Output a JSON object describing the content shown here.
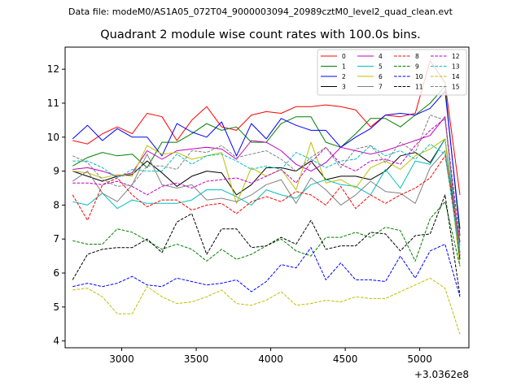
{
  "figure": {
    "suptitle": "Data file: modeM0/AS1A05_072T04_9000003094_20989cztM0_level2_quad_clean.evt"
  },
  "chart_data": {
    "type": "line",
    "title": "Quadrant 2 module wise count rates with 100.0s bins.",
    "xlabel": "",
    "ylabel": "",
    "x_offset_label": "+3.0362e8",
    "xlim": [
      2620,
      5330
    ],
    "ylim": [
      3.8,
      12.65
    ],
    "xticks": [
      3000,
      3500,
      4000,
      4500,
      5000
    ],
    "yticks": [
      4,
      5,
      6,
      7,
      8,
      9,
      10,
      11,
      12
    ],
    "legend_position": "top-right",
    "x": [
      2670,
      2770,
      2870,
      2970,
      3070,
      3170,
      3270,
      3370,
      3470,
      3570,
      3670,
      3770,
      3870,
      3970,
      4070,
      4170,
      4270,
      4370,
      4470,
      4570,
      4670,
      4770,
      4870,
      4970,
      5070,
      5170,
      5270
    ],
    "series": [
      {
        "name": "0",
        "color": "#ff0000",
        "dash": "solid",
        "values": [
          9.9,
          9.8,
          10.1,
          10.3,
          10.1,
          10.7,
          10.6,
          9.9,
          10.5,
          10.9,
          10.3,
          10.2,
          10.65,
          10.75,
          10.7,
          10.9,
          10.9,
          10.95,
          10.9,
          10.8,
          10.3,
          10.65,
          10.6,
          10.7,
          12.25,
          11.6,
          8.3
        ]
      },
      {
        "name": "1",
        "color": "#008000",
        "dash": "solid",
        "values": [
          9.15,
          9.4,
          9.55,
          9.45,
          9.5,
          9.1,
          9.85,
          9.85,
          10.1,
          10.4,
          10.2,
          10.3,
          9.85,
          9.85,
          10.4,
          10.6,
          10.6,
          9.85,
          9.7,
          10.1,
          10.55,
          10.55,
          10.3,
          10.65,
          11.0,
          11.5,
          7.1
        ]
      },
      {
        "name": "2",
        "color": "#0000ff",
        "dash": "solid",
        "values": [
          9.95,
          10.35,
          9.9,
          10.25,
          10.0,
          10.0,
          9.45,
          10.4,
          10.15,
          10.0,
          10.45,
          9.45,
          10.4,
          9.95,
          10.55,
          10.35,
          10.2,
          10.2,
          9.7,
          10.0,
          10.25,
          10.65,
          10.7,
          10.65,
          10.85,
          11.35,
          7.3
        ]
      },
      {
        "name": "3",
        "color": "#000000",
        "dash": "solid",
        "values": [
          9.0,
          8.85,
          8.7,
          8.85,
          8.9,
          9.3,
          8.95,
          8.55,
          8.85,
          9.0,
          8.95,
          8.3,
          8.6,
          9.1,
          9.1,
          9.0,
          9.3,
          8.75,
          8.85,
          8.85,
          8.75,
          9.0,
          9.45,
          9.55,
          9.25,
          9.95,
          6.4
        ]
      },
      {
        "name": "4",
        "color": "#bf00bf",
        "dash": "solid",
        "values": [
          9.05,
          9.1,
          9.0,
          8.85,
          8.95,
          9.6,
          9.35,
          9.6,
          9.65,
          9.7,
          9.65,
          9.35,
          9.9,
          9.85,
          9.6,
          9.2,
          9.0,
          9.25,
          9.7,
          9.6,
          9.5,
          9.6,
          9.75,
          9.9,
          10.05,
          10.6,
          6.5
        ]
      },
      {
        "name": "5",
        "color": "#00bfbf",
        "dash": "solid",
        "values": [
          8.1,
          8.0,
          8.35,
          7.9,
          8.15,
          8.05,
          8.05,
          8.05,
          8.15,
          8.45,
          8.45,
          8.25,
          8.0,
          8.45,
          8.3,
          8.2,
          8.6,
          8.75,
          8.6,
          8.55,
          8.3,
          9.05,
          8.5,
          9.3,
          9.2,
          9.95,
          6.8
        ]
      },
      {
        "name": "6",
        "color": "#bfbf00",
        "dash": "solid",
        "values": [
          9.0,
          8.95,
          8.8,
          8.9,
          8.85,
          9.75,
          9.5,
          9.55,
          9.35,
          9.45,
          9.55,
          8.05,
          9.1,
          8.85,
          9.05,
          8.45,
          9.85,
          8.65,
          8.75,
          8.5,
          9.1,
          9.3,
          9.05,
          9.45,
          9.65,
          9.95,
          6.2
        ]
      },
      {
        "name": "7",
        "color": "#808080",
        "dash": "solid",
        "values": [
          8.7,
          9.0,
          8.35,
          8.1,
          8.6,
          9.5,
          8.6,
          8.5,
          8.6,
          8.15,
          8.2,
          8.1,
          8.3,
          8.6,
          8.75,
          8.05,
          8.8,
          8.45,
          8.0,
          8.3,
          8.7,
          8.4,
          8.35,
          8.05,
          9.1,
          9.6,
          6.6
        ]
      },
      {
        "name": "8",
        "color": "#ff0000",
        "dash": "dashed",
        "values": [
          8.3,
          7.55,
          8.6,
          8.8,
          8.3,
          7.95,
          8.15,
          8.15,
          7.85,
          8.0,
          8.05,
          7.75,
          8.1,
          8.25,
          8.1,
          8.4,
          8.3,
          8.0,
          8.55,
          7.9,
          8.3,
          8.05,
          8.3,
          8.5,
          8.8,
          9.45,
          6.9
        ]
      },
      {
        "name": "9",
        "color": "#008000",
        "dash": "dashed",
        "values": [
          6.95,
          6.85,
          6.85,
          7.3,
          7.2,
          6.95,
          6.7,
          6.85,
          6.7,
          6.35,
          6.7,
          6.4,
          6.55,
          6.8,
          7.0,
          6.65,
          6.5,
          7.05,
          7.05,
          7.2,
          7.05,
          7.35,
          7.25,
          6.35,
          7.6,
          8.1,
          6.2
        ]
      },
      {
        "name": "10",
        "color": "#0000ff",
        "dash": "dashed",
        "values": [
          5.6,
          5.7,
          5.6,
          5.7,
          5.9,
          5.65,
          5.6,
          5.85,
          5.75,
          5.65,
          5.7,
          5.8,
          5.45,
          5.75,
          6.25,
          6.15,
          6.75,
          5.8,
          6.3,
          5.8,
          5.8,
          5.75,
          6.5,
          5.85,
          6.65,
          6.85,
          5.3
        ]
      },
      {
        "name": "11",
        "color": "#000000",
        "dash": "dashed",
        "values": [
          5.8,
          6.55,
          6.7,
          6.75,
          6.75,
          7.0,
          6.6,
          7.5,
          7.75,
          6.55,
          7.3,
          7.3,
          6.75,
          6.8,
          7.05,
          6.85,
          7.55,
          6.7,
          6.8,
          6.8,
          7.2,
          7.15,
          6.65,
          7.1,
          7.15,
          8.3,
          5.35
        ]
      },
      {
        "name": "12",
        "color": "#bf00bf",
        "dash": "dashed",
        "values": [
          8.65,
          8.65,
          8.6,
          8.7,
          8.55,
          8.3,
          8.55,
          8.65,
          8.5,
          8.7,
          8.75,
          8.8,
          8.65,
          8.85,
          9.05,
          8.65,
          9.25,
          9.7,
          9.2,
          9.0,
          9.3,
          9.35,
          9.2,
          9.75,
          10.2,
          10.55,
          6.9
        ]
      },
      {
        "name": "13",
        "color": "#00bfbf",
        "dash": "dashed",
        "values": [
          9.3,
          9.3,
          9.1,
          8.8,
          9.05,
          9.0,
          9.0,
          9.5,
          9.2,
          9.45,
          9.5,
          9.3,
          9.05,
          9.15,
          9.05,
          9.55,
          9.35,
          9.1,
          9.3,
          9.35,
          9.75,
          9.45,
          9.6,
          9.35,
          9.8,
          9.5,
          6.5
        ]
      },
      {
        "name": "14",
        "color": "#bfbf00",
        "dash": "dashed",
        "values": [
          5.5,
          5.55,
          5.3,
          4.8,
          4.8,
          5.6,
          5.3,
          5.1,
          5.15,
          5.3,
          5.5,
          5.1,
          5.05,
          5.2,
          5.45,
          5.05,
          5.1,
          5.2,
          5.15,
          5.3,
          5.25,
          5.25,
          5.45,
          5.65,
          5.85,
          5.55,
          4.2
        ]
      },
      {
        "name": "15",
        "color": "#808080",
        "dash": "dashed",
        "values": [
          9.45,
          9.25,
          8.75,
          8.55,
          8.6,
          9.15,
          9.15,
          9.05,
          9.6,
          9.55,
          9.75,
          9.4,
          9.5,
          9.6,
          9.35,
          9.0,
          9.4,
          9.7,
          9.1,
          9.65,
          9.75,
          9.25,
          9.85,
          9.55,
          10.65,
          10.5,
          6.6
        ]
      }
    ]
  }
}
